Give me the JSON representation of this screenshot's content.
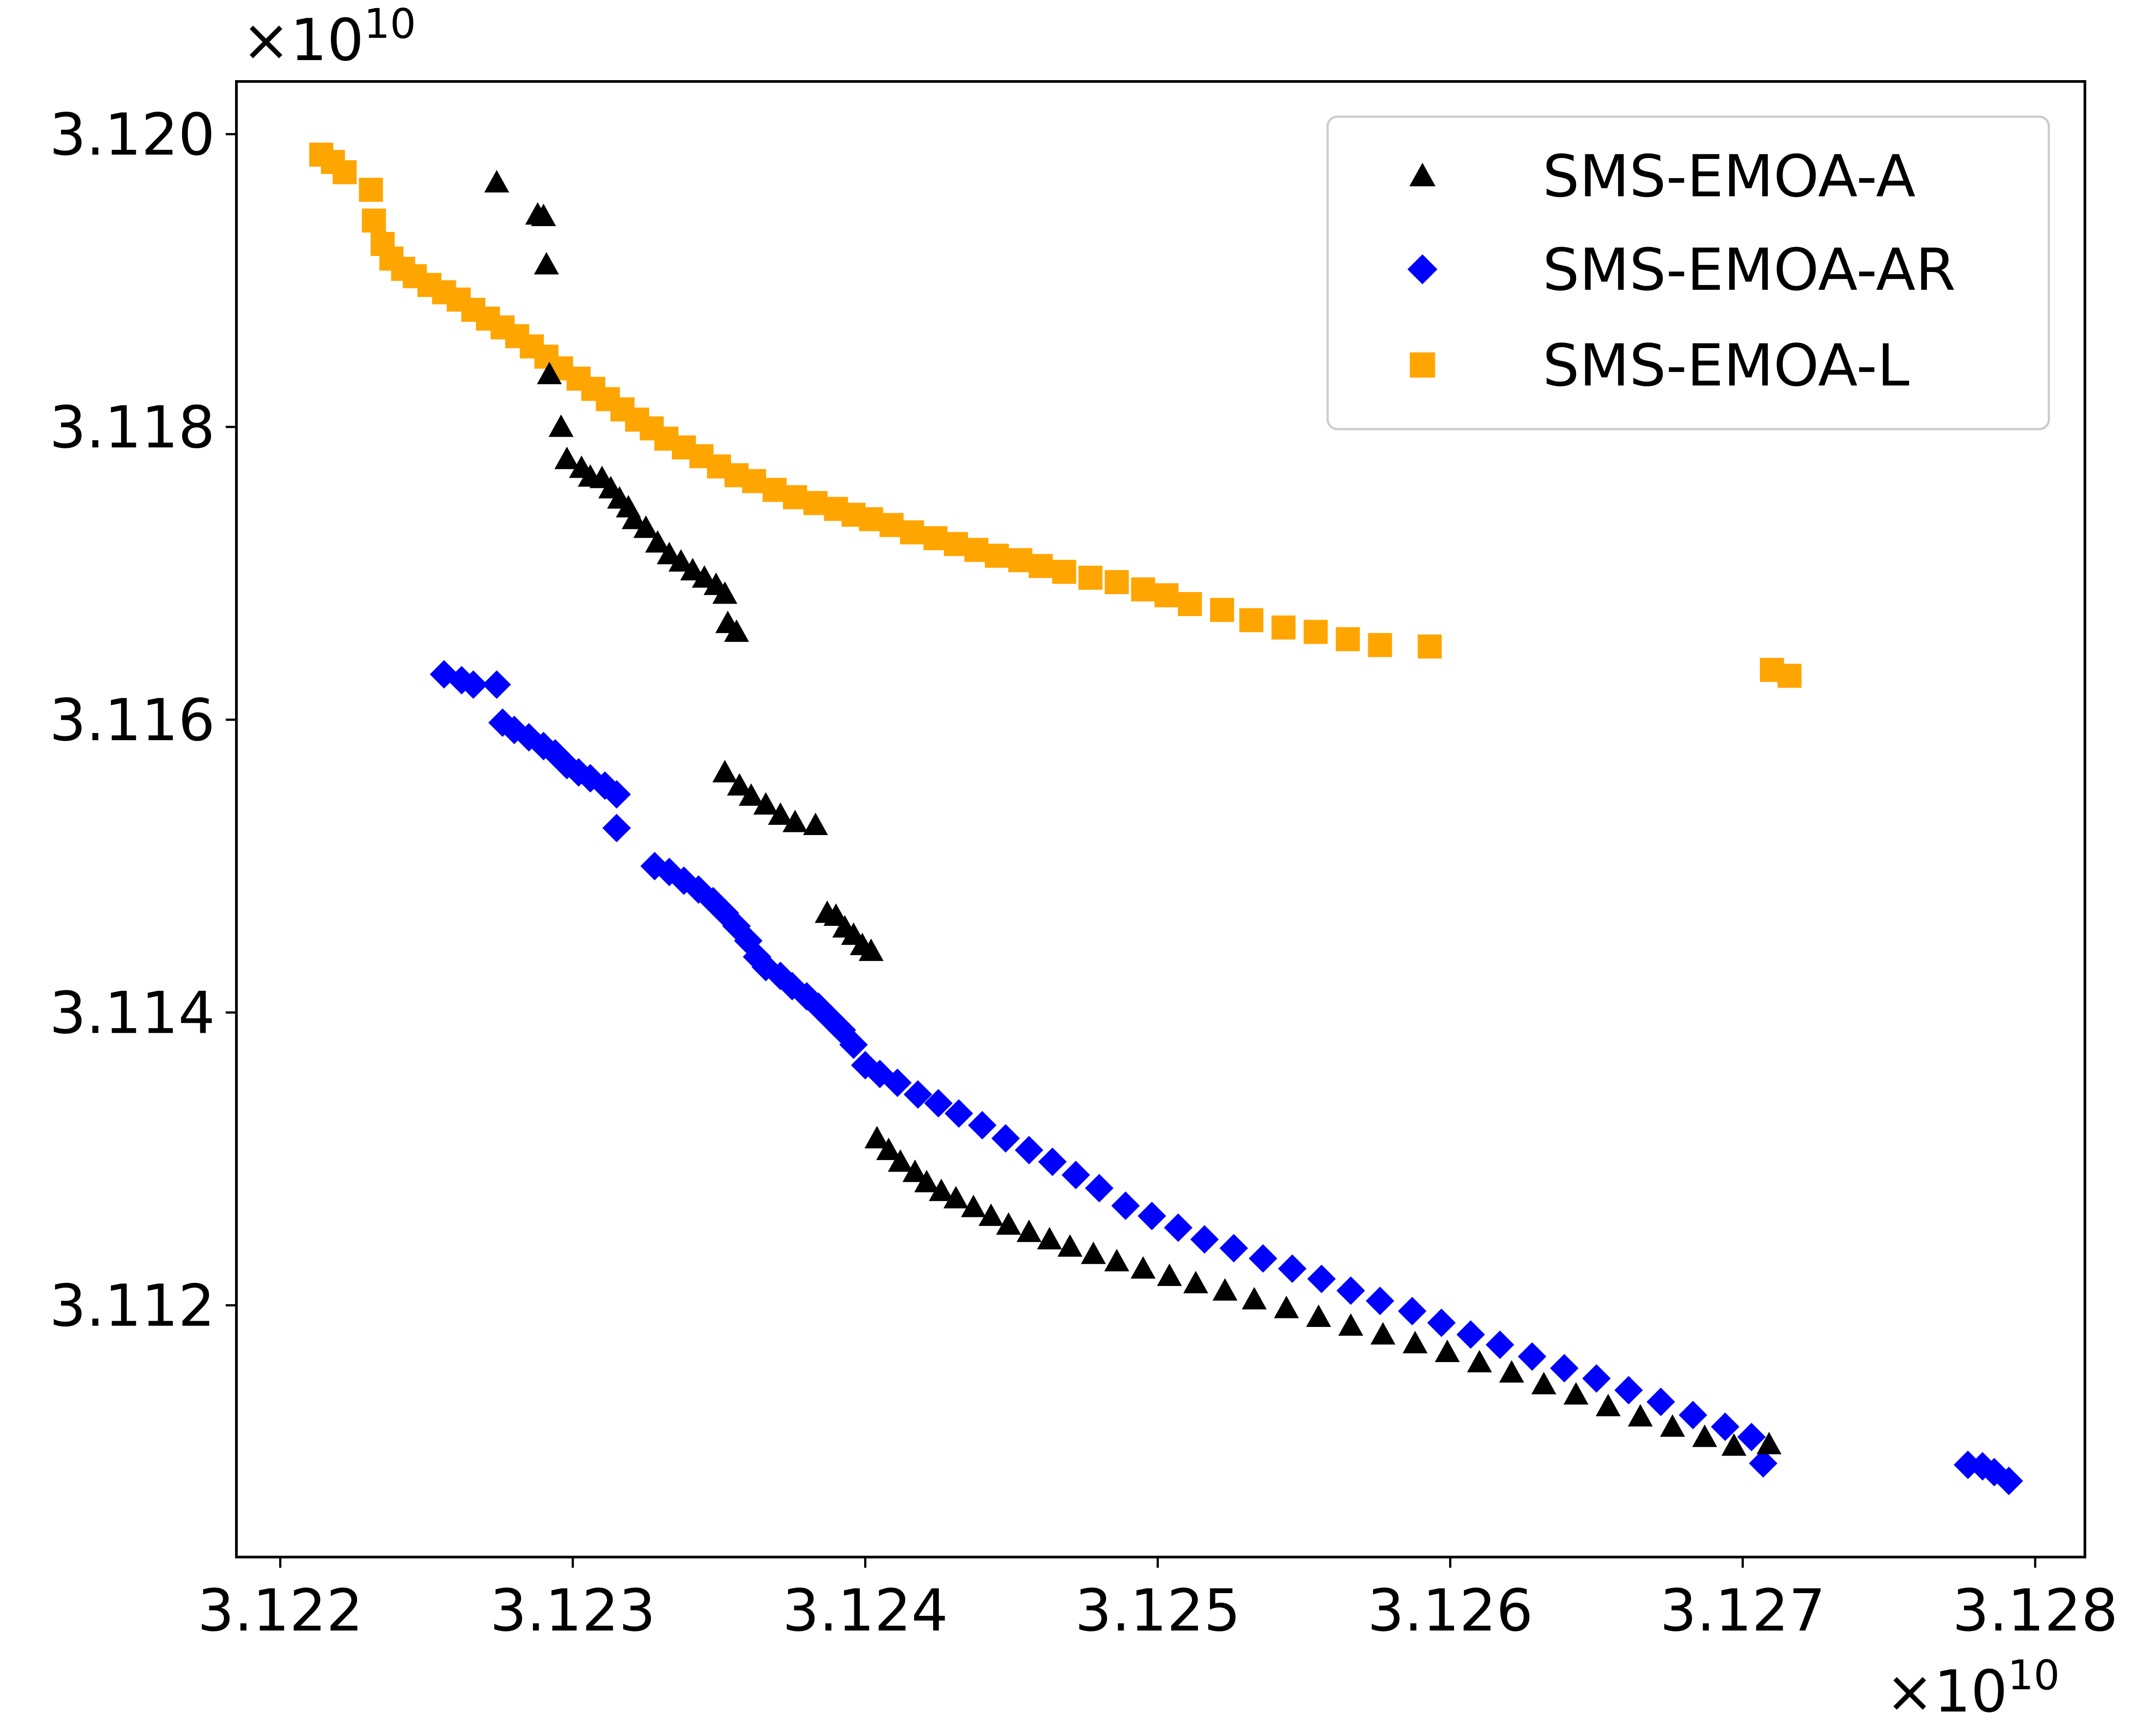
{
  "chart_data": {
    "type": "scatter",
    "title": "",
    "xlabel": "",
    "ylabel": "",
    "x_multiplier": {
      "base": "×10",
      "exponent": "10"
    },
    "y_multiplier": {
      "base": "×10",
      "exponent": "10"
    },
    "xlim": [
      3.12185,
      3.12817
    ],
    "ylim": [
      3.11028,
      3.12036
    ],
    "x_ticks": [
      3.122,
      3.123,
      3.124,
      3.125,
      3.126,
      3.127,
      3.128
    ],
    "x_tick_labels": [
      "3.122",
      "3.123",
      "3.124",
      "3.125",
      "3.126",
      "3.127",
      "3.128"
    ],
    "y_ticks": [
      3.112,
      3.114,
      3.116,
      3.118,
      3.12
    ],
    "y_tick_labels": [
      "3.112",
      "3.114",
      "3.116",
      "3.118",
      "3.120"
    ],
    "legend_position": "upper-right",
    "grid": false,
    "series": [
      {
        "name": "SMS-EMOA-A",
        "marker": "triangle",
        "color": "#000000",
        "points": [
          [
            3.12274,
            3.11967
          ],
          [
            3.12288,
            3.11945
          ],
          [
            3.1229,
            3.11944
          ],
          [
            3.12291,
            3.11911
          ],
          [
            3.12292,
            3.11836
          ],
          [
            3.12296,
            3.118
          ],
          [
            3.12298,
            3.11778
          ],
          [
            3.12303,
            3.11772
          ],
          [
            3.12306,
            3.11766
          ],
          [
            3.1231,
            3.11765
          ],
          [
            3.12313,
            3.11758
          ],
          [
            3.12316,
            3.11751
          ],
          [
            3.12319,
            3.11745
          ],
          [
            3.12321,
            3.11737
          ],
          [
            3.12325,
            3.11731
          ],
          [
            3.12329,
            3.11721
          ],
          [
            3.12333,
            3.11713
          ],
          [
            3.12337,
            3.11708
          ],
          [
            3.12341,
            3.11702
          ],
          [
            3.12345,
            3.11697
          ],
          [
            3.12349,
            3.11692
          ],
          [
            3.12352,
            3.11686
          ],
          [
            3.12353,
            3.11666
          ],
          [
            3.12356,
            3.1166
          ],
          [
            3.12352,
            3.11564
          ],
          [
            3.12357,
            3.11555
          ],
          [
            3.12361,
            3.11548
          ],
          [
            3.12366,
            3.11542
          ],
          [
            3.12371,
            3.11535
          ],
          [
            3.12376,
            3.1153
          ],
          [
            3.12383,
            3.11528
          ],
          [
            3.12387,
            3.11468
          ],
          [
            3.1239,
            3.11466
          ],
          [
            3.12393,
            3.11458
          ],
          [
            3.12396,
            3.11453
          ],
          [
            3.12399,
            3.11446
          ],
          [
            3.12402,
            3.11442
          ],
          [
            3.12404,
            3.11314
          ],
          [
            3.12408,
            3.11306
          ],
          [
            3.12412,
            3.11298
          ],
          [
            3.12417,
            3.11291
          ],
          [
            3.12421,
            3.11284
          ],
          [
            3.12426,
            3.11278
          ],
          [
            3.12431,
            3.11273
          ],
          [
            3.12437,
            3.11267
          ],
          [
            3.12443,
            3.11261
          ],
          [
            3.12449,
            3.11255
          ],
          [
            3.12456,
            3.1125
          ],
          [
            3.12463,
            3.11245
          ],
          [
            3.1247,
            3.1124
          ],
          [
            3.12478,
            3.11235
          ],
          [
            3.12486,
            3.1123
          ],
          [
            3.12495,
            3.11225
          ],
          [
            3.12504,
            3.1122
          ],
          [
            3.12513,
            3.11215
          ],
          [
            3.12523,
            3.1121
          ],
          [
            3.12533,
            3.11204
          ],
          [
            3.12544,
            3.11198
          ],
          [
            3.12555,
            3.11192
          ],
          [
            3.12566,
            3.11186
          ],
          [
            3.12577,
            3.1118
          ],
          [
            3.12588,
            3.11174
          ],
          [
            3.12599,
            3.11168
          ],
          [
            3.1261,
            3.11161
          ],
          [
            3.12621,
            3.11154
          ],
          [
            3.12632,
            3.11146
          ],
          [
            3.12643,
            3.11139
          ],
          [
            3.12654,
            3.11131
          ],
          [
            3.12665,
            3.11124
          ],
          [
            3.12676,
            3.11117
          ],
          [
            3.12687,
            3.1111
          ],
          [
            3.12697,
            3.11104
          ],
          [
            3.12709,
            3.11105
          ]
        ]
      },
      {
        "name": "SMS-EMOA-AR",
        "marker": "diamond",
        "color": "#0000ff",
        "points": [
          [
            3.12256,
            3.11631
          ],
          [
            3.12262,
            3.11627
          ],
          [
            3.12266,
            3.11624
          ],
          [
            3.12274,
            3.11624
          ],
          [
            3.12276,
            3.11598
          ],
          [
            3.1228,
            3.11593
          ],
          [
            3.12285,
            3.11588
          ],
          [
            3.1229,
            3.11582
          ],
          [
            3.12294,
            3.11577
          ],
          [
            3.12298,
            3.11569
          ],
          [
            3.12302,
            3.11564
          ],
          [
            3.12306,
            3.1156
          ],
          [
            3.12311,
            3.11555
          ],
          [
            3.12315,
            3.11549
          ],
          [
            3.12315,
            3.11526
          ],
          [
            3.12328,
            3.115
          ],
          [
            3.12333,
            3.11496
          ],
          [
            3.12338,
            3.1149
          ],
          [
            3.12343,
            3.11484
          ],
          [
            3.12348,
            3.11476
          ],
          [
            3.12352,
            3.11468
          ],
          [
            3.12356,
            3.11459
          ],
          [
            3.1236,
            3.11449
          ],
          [
            3.12363,
            3.11438
          ],
          [
            3.12366,
            3.11431
          ],
          [
            3.12371,
            3.11425
          ],
          [
            3.12375,
            3.11418
          ],
          [
            3.1238,
            3.11411
          ],
          [
            3.12384,
            3.11404
          ],
          [
            3.12388,
            3.11396
          ],
          [
            3.12392,
            3.11388
          ],
          [
            3.12396,
            3.11378
          ],
          [
            3.124,
            3.11364
          ],
          [
            3.12405,
            3.11358
          ],
          [
            3.12411,
            3.11352
          ],
          [
            3.12418,
            3.11344
          ],
          [
            3.12425,
            3.11338
          ],
          [
            3.12432,
            3.11331
          ],
          [
            3.1244,
            3.11323
          ],
          [
            3.12448,
            3.11314
          ],
          [
            3.12456,
            3.11306
          ],
          [
            3.12464,
            3.11298
          ],
          [
            3.12472,
            3.11289
          ],
          [
            3.1248,
            3.1128
          ],
          [
            3.12489,
            3.11268
          ],
          [
            3.12498,
            3.11261
          ],
          [
            3.12507,
            3.11253
          ],
          [
            3.12516,
            3.11245
          ],
          [
            3.12526,
            3.11239
          ],
          [
            3.12536,
            3.11232
          ],
          [
            3.12546,
            3.11225
          ],
          [
            3.12556,
            3.11218
          ],
          [
            3.12566,
            3.1121
          ],
          [
            3.12576,
            3.11203
          ],
          [
            3.12587,
            3.11196
          ],
          [
            3.12597,
            3.11188
          ],
          [
            3.12607,
            3.1118
          ],
          [
            3.12617,
            3.11173
          ],
          [
            3.12628,
            3.11165
          ],
          [
            3.12639,
            3.11157
          ],
          [
            3.1265,
            3.1115
          ],
          [
            3.12661,
            3.11142
          ],
          [
            3.12672,
            3.11134
          ],
          [
            3.12683,
            3.11125
          ],
          [
            3.12694,
            3.11117
          ],
          [
            3.12703,
            3.1111
          ],
          [
            3.12707,
            3.11092
          ],
          [
            3.12777,
            3.11091
          ],
          [
            3.12782,
            3.1109
          ],
          [
            3.12786,
            3.11086
          ],
          [
            3.12791,
            3.1108
          ]
        ]
      },
      {
        "name": "SMS-EMOA-L",
        "marker": "square",
        "color": "#ffa500",
        "points": [
          [
            3.12214,
            3.11986
          ],
          [
            3.12218,
            3.11981
          ],
          [
            3.12222,
            3.11974
          ],
          [
            3.12231,
            3.11962
          ],
          [
            3.12232,
            3.11941
          ],
          [
            3.12235,
            3.11925
          ],
          [
            3.12238,
            3.11915
          ],
          [
            3.12242,
            3.11908
          ],
          [
            3.12246,
            3.11903
          ],
          [
            3.12251,
            3.11897
          ],
          [
            3.12256,
            3.11892
          ],
          [
            3.12261,
            3.11887
          ],
          [
            3.12266,
            3.1188
          ],
          [
            3.12271,
            3.11874
          ],
          [
            3.12276,
            3.11868
          ],
          [
            3.12281,
            3.11862
          ],
          [
            3.12286,
            3.11855
          ],
          [
            3.12291,
            3.11848
          ],
          [
            3.12296,
            3.1184
          ],
          [
            3.12302,
            3.11833
          ],
          [
            3.12307,
            3.11826
          ],
          [
            3.12312,
            3.11819
          ],
          [
            3.12317,
            3.11812
          ],
          [
            3.12322,
            3.11805
          ],
          [
            3.12327,
            3.11799
          ],
          [
            3.12332,
            3.11792
          ],
          [
            3.12338,
            3.11786
          ],
          [
            3.12344,
            3.1178
          ],
          [
            3.1235,
            3.11773
          ],
          [
            3.12356,
            3.11767
          ],
          [
            3.12362,
            3.11763
          ],
          [
            3.12369,
            3.11757
          ],
          [
            3.12376,
            3.11752
          ],
          [
            3.12383,
            3.11748
          ],
          [
            3.1239,
            3.11744
          ],
          [
            3.12396,
            3.1174
          ],
          [
            3.12402,
            3.11737
          ],
          [
            3.12409,
            3.11733
          ],
          [
            3.12416,
            3.11728
          ],
          [
            3.12424,
            3.11724
          ],
          [
            3.12431,
            3.1172
          ],
          [
            3.12438,
            3.11716
          ],
          [
            3.12445,
            3.11712
          ],
          [
            3.12453,
            3.11709
          ],
          [
            3.1246,
            3.11705
          ],
          [
            3.12468,
            3.11701
          ],
          [
            3.12477,
            3.11697
          ],
          [
            3.12486,
            3.11694
          ],
          [
            3.12495,
            3.11689
          ],
          [
            3.12503,
            3.11685
          ],
          [
            3.12511,
            3.11679
          ],
          [
            3.12522,
            3.11675
          ],
          [
            3.12532,
            3.11668
          ],
          [
            3.12543,
            3.11663
          ],
          [
            3.12554,
            3.1166
          ],
          [
            3.12565,
            3.11655
          ],
          [
            3.12576,
            3.11651
          ],
          [
            3.12593,
            3.1165
          ],
          [
            3.1271,
            3.11634
          ],
          [
            3.12716,
            3.1163
          ]
        ]
      }
    ]
  }
}
